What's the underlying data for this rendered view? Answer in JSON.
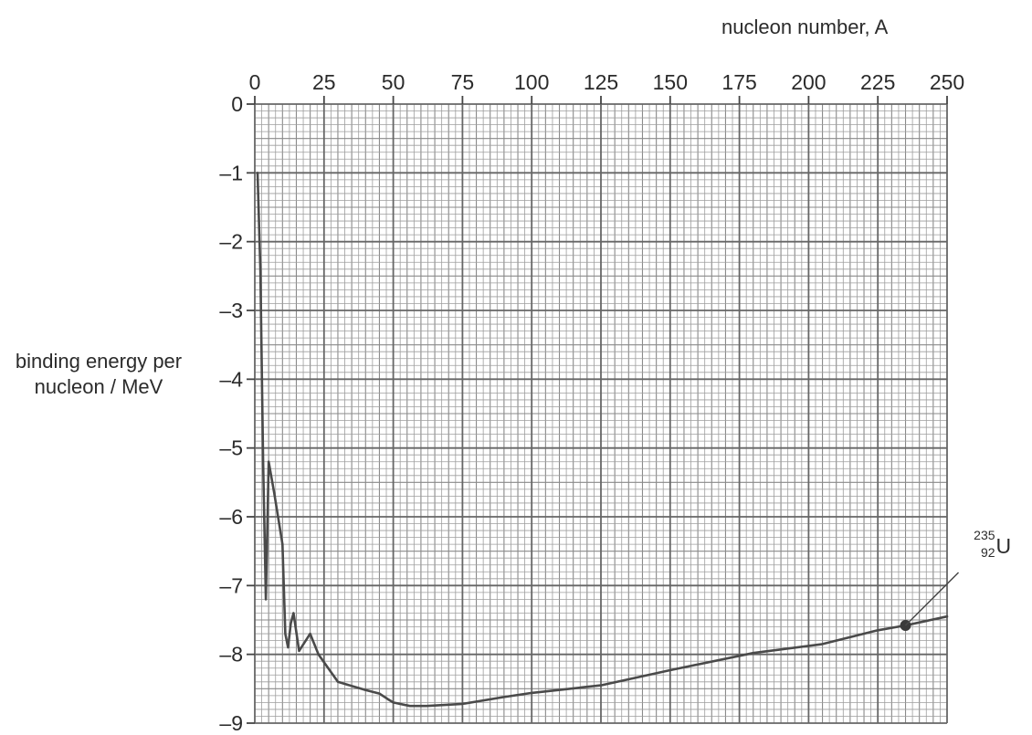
{
  "chart_data": {
    "type": "line",
    "xlabel": "nucleon number, A",
    "ylabel": "binding energy per nucleon / MeV",
    "xlim": [
      0,
      250
    ],
    "ylim": [
      -9,
      0
    ],
    "x_ticks": [
      0,
      25,
      50,
      75,
      100,
      125,
      150,
      175,
      200,
      225,
      250
    ],
    "x_tick_labels": [
      "0",
      "25",
      "50",
      "75",
      "100",
      "125",
      "150",
      "175",
      "200",
      "225",
      "250"
    ],
    "y_ticks": [
      0,
      -1,
      -2,
      -3,
      -4,
      -5,
      -6,
      -7,
      -8,
      -9
    ],
    "y_tick_labels": [
      "0",
      "–1",
      "–2",
      "–3",
      "–4",
      "–5",
      "–6",
      "–7",
      "–8",
      "–9"
    ],
    "x_axis_position": "top",
    "grid": true,
    "series": [
      {
        "x": [
          1,
          2,
          3,
          4,
          5,
          7,
          10,
          11,
          12,
          13,
          14,
          16,
          20,
          23,
          30,
          40,
          45,
          48,
          50,
          56,
          62,
          75,
          90,
          100,
          125,
          150,
          180,
          205,
          225,
          235,
          250
        ],
        "y": [
          -1.0,
          -2.4,
          -5.2,
          -7.2,
          -5.2,
          -5.65,
          -6.4,
          -7.7,
          -7.9,
          -7.55,
          -7.4,
          -7.95,
          -7.7,
          -8.0,
          -8.4,
          -8.52,
          -8.57,
          -8.65,
          -8.7,
          -8.75,
          -8.75,
          -8.72,
          -8.62,
          -8.56,
          -8.45,
          -8.23,
          -7.98,
          -7.85,
          -7.65,
          -7.58,
          -7.45
        ]
      }
    ],
    "annotations": [
      {
        "x": 235,
        "y": -7.58,
        "mass_number": "235",
        "atomic_number": "92",
        "symbol": "U"
      }
    ]
  }
}
